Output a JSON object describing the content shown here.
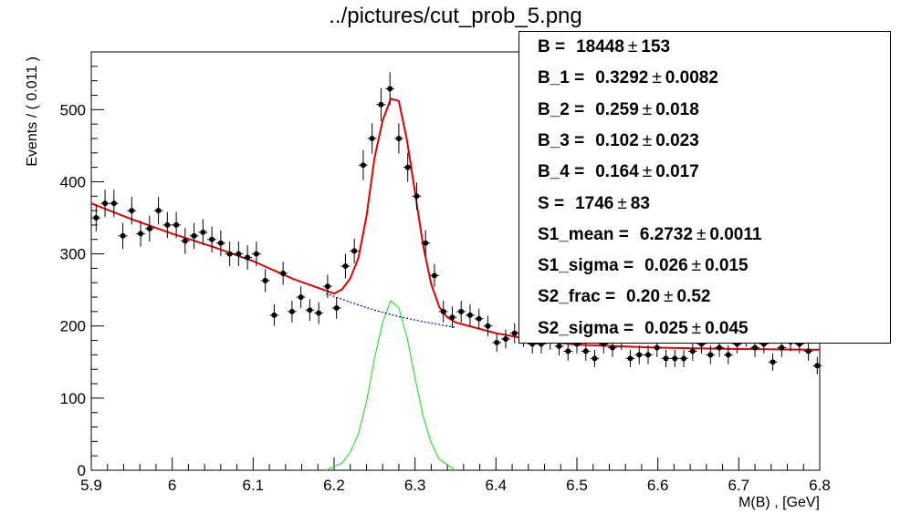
{
  "chart_data": {
    "type": "scatter",
    "title": "../pictures/cut_prob_5.png",
    "xlabel": "M(B) , [GeV]",
    "ylabel": "Events / ( 0.011 )",
    "xlim": [
      5.9,
      6.8
    ],
    "ylim": [
      0,
      580
    ],
    "x_ticks": [
      "5.9",
      "6",
      "6.1",
      "6.2",
      "6.3",
      "6.4",
      "6.5",
      "6.6",
      "6.7",
      "6.8"
    ],
    "y_ticks": [
      "0",
      "100",
      "200",
      "300",
      "400",
      "500"
    ],
    "bin_width": 0.011,
    "series": [
      {
        "role": "data",
        "color": "#000000",
        "x": [
          5.906,
          5.917,
          5.928,
          5.939,
          5.95,
          5.961,
          5.972,
          5.983,
          5.994,
          6.005,
          6.016,
          6.027,
          6.038,
          6.049,
          6.06,
          6.071,
          6.082,
          6.093,
          6.104,
          6.115,
          6.126,
          6.137,
          6.148,
          6.159,
          6.17,
          6.181,
          6.192,
          6.203,
          6.214,
          6.225,
          6.236,
          6.247,
          6.258,
          6.269,
          6.28,
          6.291,
          6.302,
          6.313,
          6.324,
          6.335,
          6.346,
          6.357,
          6.368,
          6.379,
          6.39,
          6.401,
          6.412,
          6.423,
          6.434,
          6.445,
          6.456,
          6.467,
          6.478,
          6.489,
          6.5,
          6.511,
          6.522,
          6.533,
          6.544,
          6.555,
          6.566,
          6.577,
          6.588,
          6.599,
          6.61,
          6.621,
          6.632,
          6.643,
          6.654,
          6.665,
          6.676,
          6.687,
          6.698,
          6.709,
          6.72,
          6.731,
          6.742,
          6.753,
          6.764,
          6.775,
          6.786,
          6.797
        ],
        "y": [
          350,
          370,
          370,
          325,
          360,
          328,
          335,
          360,
          340,
          340,
          318,
          325,
          330,
          320,
          315,
          300,
          300,
          295,
          300,
          263,
          215,
          273,
          220,
          240,
          222,
          218,
          255,
          225,
          283,
          304,
          423,
          460,
          507,
          529,
          460,
          420,
          380,
          315,
          270,
          220,
          212,
          220,
          215,
          210,
          200,
          177,
          182,
          190,
          185,
          175,
          175,
          180,
          172,
          165,
          175,
          165,
          155,
          175,
          170,
          180,
          155,
          160,
          160,
          170,
          155,
          155,
          155,
          165,
          175,
          160,
          170,
          160,
          175,
          185,
          170,
          175,
          150,
          170,
          178,
          175,
          165,
          145
        ],
        "err": [
          19,
          19,
          19,
          18,
          19,
          18,
          18,
          19,
          18,
          18,
          18,
          18,
          18,
          18,
          18,
          17,
          17,
          17,
          17,
          16,
          15,
          16,
          15,
          15,
          15,
          15,
          16,
          15,
          17,
          17,
          21,
          21,
          23,
          23,
          21,
          20,
          19,
          18,
          16,
          15,
          15,
          15,
          15,
          14,
          14,
          13,
          13,
          14,
          14,
          13,
          13,
          13,
          13,
          13,
          13,
          13,
          12,
          13,
          13,
          13,
          12,
          13,
          13,
          13,
          12,
          12,
          12,
          13,
          13,
          13,
          13,
          13,
          13,
          14,
          13,
          13,
          12,
          13,
          13,
          13,
          13,
          12
        ]
      },
      {
        "role": "total-fit",
        "color": "#e00000",
        "style": "solid",
        "x": [
          5.9,
          5.95,
          6.0,
          6.05,
          6.1,
          6.15,
          6.2,
          6.21,
          6.22,
          6.23,
          6.24,
          6.25,
          6.26,
          6.27,
          6.28,
          6.29,
          6.3,
          6.31,
          6.32,
          6.33,
          6.34,
          6.35,
          6.4,
          6.45,
          6.5,
          6.6,
          6.7,
          6.8
        ],
        "y": [
          370,
          348,
          328,
          310,
          290,
          265,
          245,
          251,
          266,
          294,
          352,
          433,
          485,
          515,
          512,
          458,
          385,
          312,
          258,
          226,
          212,
          205,
          190,
          180,
          174,
          170,
          168,
          167
        ]
      },
      {
        "role": "background",
        "color": "#0000cc",
        "style": "dotted",
        "x": [
          6.19,
          6.22,
          6.25,
          6.28,
          6.31,
          6.35
        ],
        "y": [
          245,
          233,
          222,
          213,
          206,
          198
        ]
      },
      {
        "role": "signal",
        "color": "#33dd33",
        "style": "solid",
        "x": [
          6.19,
          6.21,
          6.22,
          6.23,
          6.24,
          6.25,
          6.26,
          6.27,
          6.28,
          6.29,
          6.3,
          6.31,
          6.32,
          6.33,
          6.35
        ],
        "y": [
          0,
          10,
          25,
          50,
          95,
          155,
          205,
          235,
          225,
          185,
          128,
          75,
          38,
          15,
          0
        ]
      }
    ],
    "grid": false,
    "legend": "none"
  },
  "stats": [
    {
      "label": "B =",
      "value": "18448",
      "error": "153"
    },
    {
      "label": "B_1 =",
      "value": "0.3292",
      "error": "0.0082"
    },
    {
      "label": "B_2 =",
      "value": "0.259",
      "error": "0.018"
    },
    {
      "label": "B_3 =",
      "value": "0.102",
      "error": "0.023"
    },
    {
      "label": "B_4 =",
      "value": "0.164",
      "error": "0.017"
    },
    {
      "label": "S =",
      "value": "1746",
      "error": "83"
    },
    {
      "label": "S1_mean =",
      "value": "6.2732",
      "error": "0.0011"
    },
    {
      "label": "S1_sigma =",
      "value": "0.026",
      "error": "0.015"
    },
    {
      "label": "S2_frac =",
      "value": "0.20",
      "error": "0.52"
    },
    {
      "label": "S2_sigma =",
      "value": "0.025",
      "error": "0.045"
    }
  ],
  "pm_symbol": "±"
}
